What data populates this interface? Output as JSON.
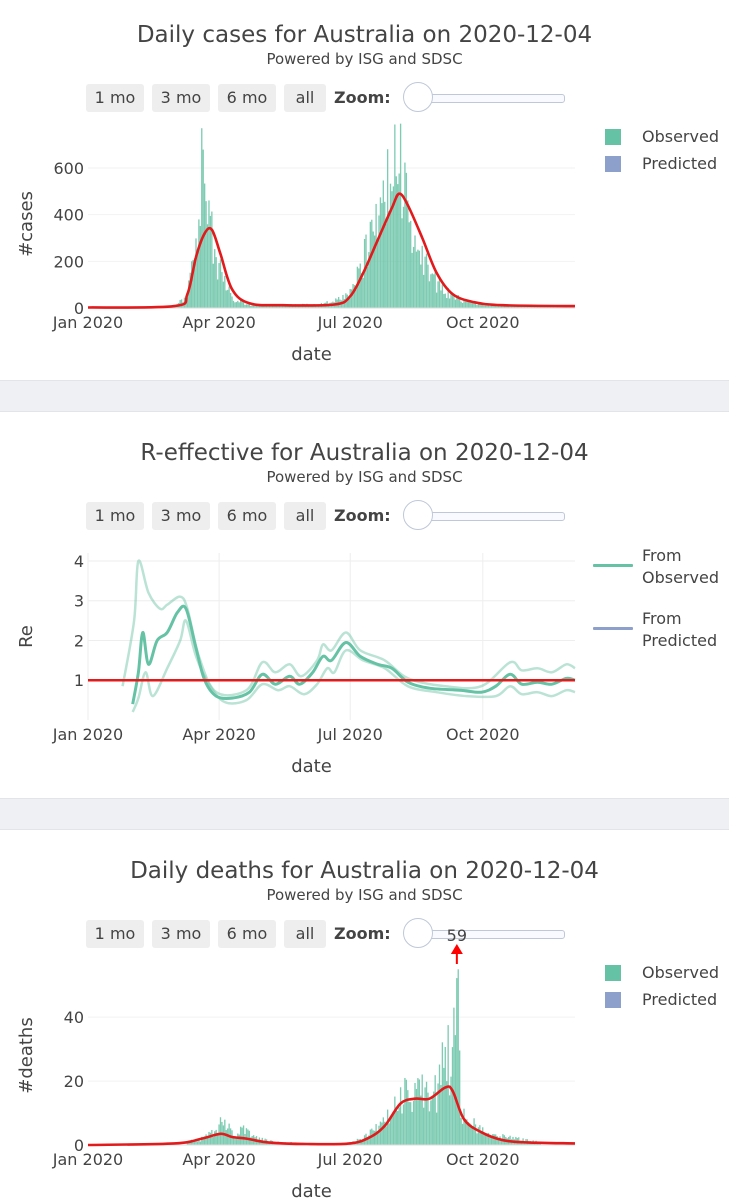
{
  "buttons": [
    "1 mo",
    "3 mo",
    "6 mo",
    "all"
  ],
  "zoom_label": "Zoom:",
  "colors": {
    "observed": "#66c2a5",
    "predicted": "#8da0cb",
    "fit": "#e31a1c"
  },
  "chart_data": [
    {
      "type": "bar",
      "title": "Daily cases for Australia on 2020-12-04",
      "subtitle": "Powered by ISG and SDSC",
      "xlabel": "date",
      "ylabel": "#cases",
      "x_ticks": [
        "Jan 2020",
        "Apr 2020",
        "Jul 2020",
        "Oct 2020"
      ],
      "y_ticks": [
        "0",
        "200",
        "400",
        "600"
      ],
      "ylim": [
        0,
        720
      ],
      "xlim": [
        "2020-01-01",
        "2020-12-04"
      ],
      "legend": [
        "Observed",
        "Predicted"
      ],
      "legend_position": "top-right",
      "series": [
        {
          "name": "Observed",
          "kind": "bar",
          "points": [
            [
              "2020-03-01",
              5
            ],
            [
              "2020-03-10",
              60
            ],
            [
              "2020-03-16",
              250
            ],
            [
              "2020-03-19",
              610
            ],
            [
              "2020-03-21",
              600
            ],
            [
              "2020-03-23",
              380
            ],
            [
              "2020-03-26",
              360
            ],
            [
              "2020-03-30",
              240
            ],
            [
              "2020-04-04",
              120
            ],
            [
              "2020-04-10",
              50
            ],
            [
              "2020-04-20",
              15
            ],
            [
              "2020-05-10",
              12
            ],
            [
              "2020-06-10",
              15
            ],
            [
              "2020-06-25",
              40
            ],
            [
              "2020-07-05",
              130
            ],
            [
              "2020-07-12",
              250
            ],
            [
              "2020-07-20",
              400
            ],
            [
              "2020-07-27",
              530
            ],
            [
              "2020-08-01",
              640
            ],
            [
              "2020-08-04",
              725
            ],
            [
              "2020-08-06",
              640
            ],
            [
              "2020-08-10",
              430
            ],
            [
              "2020-08-15",
              330
            ],
            [
              "2020-08-22",
              220
            ],
            [
              "2020-08-30",
              120
            ],
            [
              "2020-09-07",
              70
            ],
            [
              "2020-09-15",
              40
            ],
            [
              "2020-10-01",
              15
            ],
            [
              "2020-11-01",
              10
            ],
            [
              "2020-12-03",
              8
            ]
          ]
        },
        {
          "name": "fit",
          "kind": "line",
          "points": [
            [
              "2020-01-01",
              2
            ],
            [
              "2020-03-01",
              8
            ],
            [
              "2020-03-10",
              60
            ],
            [
              "2020-03-16",
              220
            ],
            [
              "2020-03-22",
              320
            ],
            [
              "2020-03-27",
              335
            ],
            [
              "2020-04-02",
              230
            ],
            [
              "2020-04-10",
              80
            ],
            [
              "2020-04-22",
              20
            ],
            [
              "2020-05-15",
              12
            ],
            [
              "2020-06-20",
              15
            ],
            [
              "2020-07-01",
              50
            ],
            [
              "2020-07-10",
              150
            ],
            [
              "2020-07-20",
              290
            ],
            [
              "2020-07-30",
              430
            ],
            [
              "2020-08-04",
              490
            ],
            [
              "2020-08-10",
              440
            ],
            [
              "2020-08-20",
              300
            ],
            [
              "2020-08-30",
              150
            ],
            [
              "2020-09-10",
              60
            ],
            [
              "2020-09-25",
              25
            ],
            [
              "2020-10-15",
              12
            ],
            [
              "2020-12-04",
              8
            ]
          ]
        }
      ]
    },
    {
      "type": "line",
      "title": "R-effective for Australia on 2020-12-04",
      "subtitle": "Powered by ISG and SDSC",
      "xlabel": "date",
      "ylabel": "Re",
      "x_ticks": [
        "Jan 2020",
        "Apr 2020",
        "Jul 2020",
        "Oct 2020"
      ],
      "y_ticks": [
        "1",
        "2",
        "3",
        "4"
      ],
      "ylim": [
        0,
        4.2
      ],
      "xlim": [
        "2020-01-01",
        "2020-12-04"
      ],
      "reference_line": 1,
      "legend": [
        "From Observed",
        "From Predicted"
      ],
      "legend_position": "top-right",
      "series": [
        {
          "name": "From Observed",
          "points": [
            [
              "2020-02-01",
              0.4
            ],
            [
              "2020-02-05",
              1.2
            ],
            [
              "2020-02-08",
              2.2
            ],
            [
              "2020-02-12",
              1.4
            ],
            [
              "2020-02-18",
              2.0
            ],
            [
              "2020-02-25",
              2.2
            ],
            [
              "2020-03-03",
              2.7
            ],
            [
              "2020-03-09",
              2.8
            ],
            [
              "2020-03-16",
              1.8
            ],
            [
              "2020-03-22",
              1.0
            ],
            [
              "2020-03-30",
              0.6
            ],
            [
              "2020-04-10",
              0.55
            ],
            [
              "2020-04-22",
              0.7
            ],
            [
              "2020-05-01",
              1.15
            ],
            [
              "2020-05-10",
              0.9
            ],
            [
              "2020-05-20",
              1.1
            ],
            [
              "2020-05-27",
              0.9
            ],
            [
              "2020-06-05",
              1.2
            ],
            [
              "2020-06-12",
              1.6
            ],
            [
              "2020-06-18",
              1.5
            ],
            [
              "2020-06-28",
              1.95
            ],
            [
              "2020-07-08",
              1.6
            ],
            [
              "2020-07-20",
              1.4
            ],
            [
              "2020-07-30",
              1.3
            ],
            [
              "2020-08-10",
              0.95
            ],
            [
              "2020-08-25",
              0.8
            ],
            [
              "2020-09-15",
              0.75
            ],
            [
              "2020-09-30",
              0.7
            ],
            [
              "2020-10-10",
              0.85
            ],
            [
              "2020-10-20",
              1.15
            ],
            [
              "2020-10-28",
              0.9
            ],
            [
              "2020-11-08",
              0.95
            ],
            [
              "2020-11-18",
              0.9
            ],
            [
              "2020-11-28",
              1.05
            ],
            [
              "2020-12-04",
              1.0
            ]
          ]
        },
        {
          "name": "upper",
          "points": [
            [
              "2020-01-25",
              0.85
            ],
            [
              "2020-02-02",
              2.5
            ],
            [
              "2020-02-05",
              4.0
            ],
            [
              "2020-02-12",
              3.2
            ],
            [
              "2020-02-20",
              2.8
            ],
            [
              "2020-02-25",
              2.9
            ],
            [
              "2020-03-05",
              3.1
            ],
            [
              "2020-03-10",
              2.8
            ],
            [
              "2020-03-18",
              1.6
            ],
            [
              "2020-03-30",
              0.7
            ],
            [
              "2020-04-20",
              0.75
            ],
            [
              "2020-05-01",
              1.45
            ],
            [
              "2020-05-10",
              1.2
            ],
            [
              "2020-05-20",
              1.4
            ],
            [
              "2020-05-28",
              1.1
            ],
            [
              "2020-06-08",
              1.5
            ],
            [
              "2020-06-12",
              1.9
            ],
            [
              "2020-06-18",
              1.75
            ],
            [
              "2020-06-28",
              2.2
            ],
            [
              "2020-07-08",
              1.75
            ],
            [
              "2020-07-25",
              1.5
            ],
            [
              "2020-08-10",
              1.05
            ],
            [
              "2020-09-05",
              0.85
            ],
            [
              "2020-09-30",
              0.85
            ],
            [
              "2020-10-20",
              1.45
            ],
            [
              "2020-10-28",
              1.25
            ],
            [
              "2020-11-08",
              1.3
            ],
            [
              "2020-11-18",
              1.2
            ],
            [
              "2020-11-28",
              1.4
            ],
            [
              "2020-12-04",
              1.3
            ]
          ]
        },
        {
          "name": "lower",
          "points": [
            [
              "2020-02-01",
              0.2
            ],
            [
              "2020-02-05",
              0.55
            ],
            [
              "2020-02-10",
              1.2
            ],
            [
              "2020-02-15",
              0.6
            ],
            [
              "2020-02-25",
              1.3
            ],
            [
              "2020-03-05",
              2.0
            ],
            [
              "2020-03-09",
              2.5
            ],
            [
              "2020-03-16",
              1.6
            ],
            [
              "2020-03-25",
              0.9
            ],
            [
              "2020-04-05",
              0.45
            ],
            [
              "2020-04-20",
              0.5
            ],
            [
              "2020-05-01",
              0.9
            ],
            [
              "2020-05-12",
              0.75
            ],
            [
              "2020-05-20",
              0.85
            ],
            [
              "2020-05-30",
              0.65
            ],
            [
              "2020-06-08",
              0.9
            ],
            [
              "2020-06-15",
              1.3
            ],
            [
              "2020-06-20",
              1.2
            ],
            [
              "2020-06-28",
              1.75
            ],
            [
              "2020-07-10",
              1.5
            ],
            [
              "2020-07-25",
              1.3
            ],
            [
              "2020-08-10",
              0.85
            ],
            [
              "2020-08-30",
              0.7
            ],
            [
              "2020-09-20",
              0.6
            ],
            [
              "2020-10-10",
              0.6
            ],
            [
              "2020-10-20",
              0.85
            ],
            [
              "2020-10-28",
              0.65
            ],
            [
              "2020-11-08",
              0.7
            ],
            [
              "2020-11-18",
              0.6
            ],
            [
              "2020-11-28",
              0.75
            ],
            [
              "2020-12-04",
              0.7
            ]
          ]
        }
      ]
    },
    {
      "type": "bar",
      "title": "Daily deaths for Australia on 2020-12-04",
      "subtitle": "Powered by ISG and SDSC",
      "xlabel": "date",
      "ylabel": "#deaths",
      "x_ticks": [
        "Jan 2020",
        "Apr 2020",
        "Jul 2020",
        "Oct 2020"
      ],
      "y_ticks": [
        "0",
        "20",
        "40"
      ],
      "ylim": [
        0,
        56
      ],
      "xlim": [
        "2020-01-01",
        "2020-12-04"
      ],
      "annotation": {
        "text": "59",
        "date": "2020-09-13",
        "value": 59
      },
      "legend": [
        "Observed",
        "Predicted"
      ],
      "legend_position": "top-right",
      "series": [
        {
          "name": "Observed",
          "kind": "bar",
          "points": [
            [
              "2020-03-10",
              1
            ],
            [
              "2020-03-20",
              2
            ],
            [
              "2020-03-28",
              4
            ],
            [
              "2020-04-02",
              7
            ],
            [
              "2020-04-06",
              6
            ],
            [
              "2020-04-12",
              4
            ],
            [
              "2020-04-20",
              5
            ],
            [
              "2020-04-28",
              2
            ],
            [
              "2020-05-10",
              1
            ],
            [
              "2020-06-20",
              0
            ],
            [
              "2020-07-10",
              2
            ],
            [
              "2020-07-20",
              6
            ],
            [
              "2020-07-28",
              9
            ],
            [
              "2020-08-03",
              14
            ],
            [
              "2020-08-08",
              18
            ],
            [
              "2020-08-12",
              14
            ],
            [
              "2020-08-17",
              25
            ],
            [
              "2020-08-22",
              18
            ],
            [
              "2020-08-27",
              16
            ],
            [
              "2020-09-01",
              20
            ],
            [
              "2020-09-05",
              41
            ],
            [
              "2020-09-09",
              20
            ],
            [
              "2020-09-13",
              59
            ],
            [
              "2020-09-16",
              12
            ],
            [
              "2020-09-22",
              8
            ],
            [
              "2020-09-30",
              5
            ],
            [
              "2020-10-10",
              3
            ],
            [
              "2020-10-25",
              2
            ],
            [
              "2020-11-10",
              1
            ]
          ]
        },
        {
          "name": "fit",
          "kind": "line",
          "points": [
            [
              "2020-01-01",
              0
            ],
            [
              "2020-03-01",
              0.5
            ],
            [
              "2020-03-20",
              2
            ],
            [
              "2020-04-02",
              3.5
            ],
            [
              "2020-04-10",
              2.5
            ],
            [
              "2020-04-20",
              2.0
            ],
            [
              "2020-05-05",
              0.8
            ],
            [
              "2020-06-01",
              0.3
            ],
            [
              "2020-07-01",
              0.5
            ],
            [
              "2020-07-15",
              2.5
            ],
            [
              "2020-07-25",
              6
            ],
            [
              "2020-08-05",
              13
            ],
            [
              "2020-08-15",
              14.5
            ],
            [
              "2020-08-25",
              14.5
            ],
            [
              "2020-09-05",
              18
            ],
            [
              "2020-09-10",
              17
            ],
            [
              "2020-09-18",
              8
            ],
            [
              "2020-09-30",
              4
            ],
            [
              "2020-10-15",
              1.5
            ],
            [
              "2020-11-01",
              0.8
            ],
            [
              "2020-12-04",
              0.5
            ]
          ]
        }
      ]
    }
  ]
}
